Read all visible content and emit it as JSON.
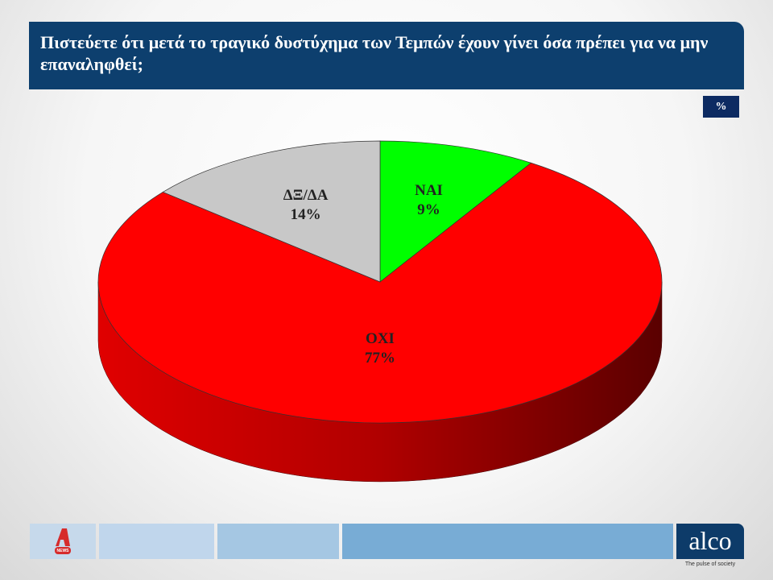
{
  "header": {
    "title": "Πιστεύετε ότι μετά το τραγικό δυστύχημα των Τεμπών έχουν γίνει όσα πρέπει για να μην επαναληφθεί;",
    "unit": "%"
  },
  "chart_data": {
    "type": "pie",
    "style": "3d",
    "title": "Πιστεύετε ότι μετά το τραγικό δυστύχημα των Τεμπών έχουν γίνει όσα πρέπει για να μην επαναληφθεί;",
    "categories": [
      "ΝΑΙ",
      "ΟΧΙ",
      "ΔΞ/ΔΑ"
    ],
    "values": [
      9,
      77,
      14
    ],
    "labels": [
      "9%",
      "77%",
      "14%"
    ],
    "colors": [
      "#00ff00",
      "#ff0000",
      "#c8c8c8"
    ],
    "start": "top, clockwise",
    "legend": "none"
  },
  "footer": {
    "left_logo_text": "NEWS",
    "brand": "alco",
    "tagline": "The pulse of society"
  }
}
